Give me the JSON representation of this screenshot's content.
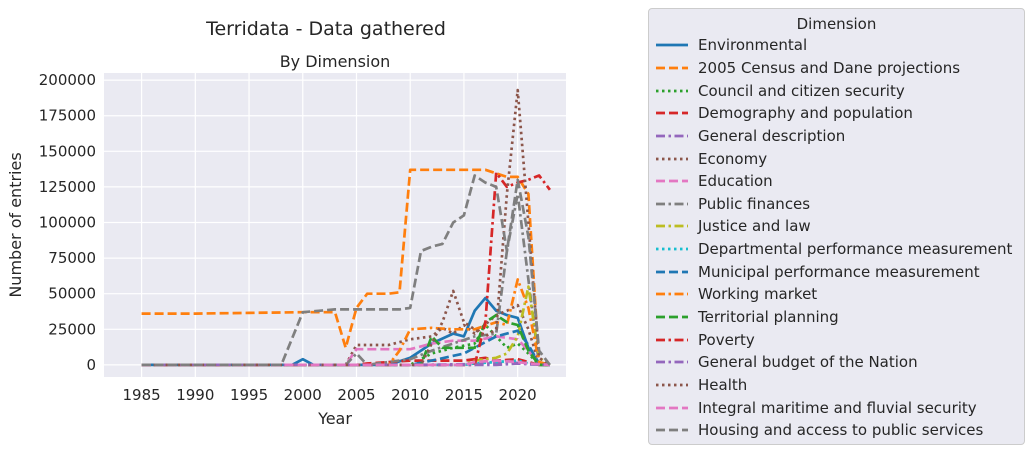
{
  "figure": {
    "suptitle": "Terridata - Data gathered"
  },
  "chart_data": {
    "type": "line",
    "title": "By Dimension",
    "xlabel": "Year",
    "ylabel": "Number of entries",
    "xlim": [
      1981.5,
      2024.5
    ],
    "ylim": [
      -8500,
      205000
    ],
    "xticks": [
      1985,
      1990,
      1995,
      2000,
      2005,
      2010,
      2015,
      2020
    ],
    "yticks": [
      0,
      25000,
      50000,
      75000,
      100000,
      125000,
      150000,
      175000,
      200000
    ],
    "grid": true,
    "legend": {
      "title": "Dimension",
      "placement": "outside-right"
    },
    "series": [
      {
        "name": "Environmental",
        "color": "#1f77b4",
        "dash": "solid",
        "points": [
          [
            1985,
            0
          ],
          [
            1999,
            0
          ],
          [
            2000,
            4000
          ],
          [
            2001,
            0
          ],
          [
            2008,
            0
          ],
          [
            2010,
            5000
          ],
          [
            2012,
            15000
          ],
          [
            2014,
            22000
          ],
          [
            2015,
            20000
          ],
          [
            2016,
            38000
          ],
          [
            2017,
            47000
          ],
          [
            2018,
            38000
          ],
          [
            2019,
            35000
          ],
          [
            2020,
            33000
          ],
          [
            2021,
            12000
          ],
          [
            2022,
            500
          ],
          [
            2023,
            0
          ]
        ]
      },
      {
        "name": "2005 Census and Dane projections",
        "color": "#ff7f0e",
        "dash": "dash",
        "points": [
          [
            1985,
            36000
          ],
          [
            1990,
            36000
          ],
          [
            1995,
            36500
          ],
          [
            2000,
            37000
          ],
          [
            2003,
            37000
          ],
          [
            2004,
            12000
          ],
          [
            2005,
            40000
          ],
          [
            2006,
            50000
          ],
          [
            2008,
            50000
          ],
          [
            2009,
            51000
          ],
          [
            2010,
            137000
          ],
          [
            2015,
            137000
          ],
          [
            2017,
            137000
          ],
          [
            2019,
            132000
          ],
          [
            2020,
            132000
          ],
          [
            2021,
            120000
          ],
          [
            2022,
            0
          ],
          [
            2023,
            0
          ]
        ]
      },
      {
        "name": "Council and citizen security",
        "color": "#2ca02c",
        "dash": "dot",
        "points": [
          [
            1985,
            0
          ],
          [
            2010,
            0
          ],
          [
            2012,
            8000
          ],
          [
            2014,
            12000
          ],
          [
            2016,
            15000
          ],
          [
            2017,
            28000
          ],
          [
            2018,
            20000
          ],
          [
            2019,
            12000
          ],
          [
            2020,
            15000
          ],
          [
            2021,
            8000
          ],
          [
            2022,
            0
          ],
          [
            2023,
            0
          ]
        ]
      },
      {
        "name": "Demography and population",
        "color": "#d62728",
        "dash": "dash",
        "points": [
          [
            1985,
            0
          ],
          [
            2005,
            0
          ],
          [
            2006,
            1000
          ],
          [
            2010,
            3000
          ],
          [
            2015,
            3000
          ],
          [
            2017,
            5000
          ],
          [
            2018,
            3000
          ],
          [
            2020,
            4000
          ],
          [
            2021,
            2000
          ],
          [
            2022,
            0
          ],
          [
            2023,
            0
          ]
        ]
      },
      {
        "name": "General description",
        "color": "#9467bd",
        "dash": "dashdot",
        "points": [
          [
            1985,
            0
          ],
          [
            2010,
            0
          ],
          [
            2015,
            500
          ],
          [
            2020,
            1500
          ],
          [
            2021,
            500
          ],
          [
            2023,
            0
          ]
        ]
      },
      {
        "name": "Economy",
        "color": "#8c564b",
        "dash": "dot",
        "points": [
          [
            1985,
            0
          ],
          [
            2004,
            0
          ],
          [
            2005,
            14000
          ],
          [
            2008,
            14000
          ],
          [
            2010,
            18000
          ],
          [
            2012,
            20000
          ],
          [
            2013,
            26000
          ],
          [
            2014,
            22000
          ],
          [
            2015,
            28000
          ],
          [
            2016,
            22000
          ],
          [
            2018,
            35000
          ],
          [
            2019,
            38000
          ],
          [
            2020,
            42000
          ],
          [
            2021,
            25000
          ],
          [
            2022,
            1000
          ],
          [
            2023,
            0
          ]
        ]
      },
      {
        "name": "Education",
        "color": "#e377c2",
        "dash": "dash",
        "points": [
          [
            1985,
            0
          ],
          [
            2004,
            0
          ],
          [
            2005,
            11000
          ],
          [
            2010,
            11000
          ],
          [
            2011,
            13000
          ],
          [
            2012,
            15000
          ],
          [
            2014,
            17000
          ],
          [
            2016,
            17000
          ],
          [
            2018,
            20000
          ],
          [
            2019,
            19000
          ],
          [
            2020,
            18000
          ],
          [
            2021,
            10000
          ],
          [
            2022,
            0
          ],
          [
            2023,
            0
          ]
        ]
      },
      {
        "name": "Public finances",
        "color": "#7f7f7f",
        "dash": "dashdot",
        "points": [
          [
            1985,
            0
          ],
          [
            2004,
            0
          ],
          [
            2005,
            8000
          ],
          [
            2006,
            0
          ],
          [
            2008,
            2000
          ],
          [
            2010,
            4000
          ],
          [
            2012,
            10000
          ],
          [
            2014,
            15000
          ],
          [
            2016,
            20000
          ],
          [
            2018,
            22000
          ],
          [
            2019,
            80000
          ],
          [
            2020,
            120000
          ],
          [
            2021,
            60000
          ],
          [
            2022,
            0
          ],
          [
            2023,
            0
          ]
        ]
      },
      {
        "name": "Justice and law",
        "color": "#bcbd22",
        "dash": "dashdot",
        "points": [
          [
            1985,
            0
          ],
          [
            2015,
            0
          ],
          [
            2016,
            3000
          ],
          [
            2018,
            5000
          ],
          [
            2019,
            8000
          ],
          [
            2020,
            20000
          ],
          [
            2021,
            55000
          ],
          [
            2022,
            5000
          ],
          [
            2023,
            0
          ]
        ]
      },
      {
        "name": "Departmental performance measurement",
        "color": "#17becf",
        "dash": "dot",
        "points": [
          [
            1985,
            0
          ],
          [
            2015,
            0
          ],
          [
            2016,
            1000
          ],
          [
            2018,
            2000
          ],
          [
            2020,
            3000
          ],
          [
            2021,
            1000
          ],
          [
            2023,
            0
          ]
        ]
      },
      {
        "name": "Municipal performance measurement",
        "color": "#1f77b4",
        "dash": "dash",
        "points": [
          [
            1985,
            0
          ],
          [
            2010,
            0
          ],
          [
            2012,
            3000
          ],
          [
            2015,
            8000
          ],
          [
            2016,
            12000
          ],
          [
            2017,
            16000
          ],
          [
            2018,
            20000
          ],
          [
            2019,
            22000
          ],
          [
            2020,
            24000
          ],
          [
            2021,
            14000
          ],
          [
            2022,
            1000
          ],
          [
            2023,
            0
          ]
        ]
      },
      {
        "name": "Working market",
        "color": "#ff7f0e",
        "dash": "dashdot",
        "points": [
          [
            1985,
            0
          ],
          [
            2008,
            0
          ],
          [
            2009,
            10000
          ],
          [
            2010,
            25000
          ],
          [
            2012,
            26000
          ],
          [
            2014,
            25000
          ],
          [
            2016,
            25000
          ],
          [
            2018,
            30000
          ],
          [
            2019,
            28000
          ],
          [
            2020,
            60000
          ],
          [
            2021,
            40000
          ],
          [
            2022,
            2000
          ],
          [
            2023,
            0
          ]
        ]
      },
      {
        "name": "Territorial planning",
        "color": "#2ca02c",
        "dash": "dash",
        "points": [
          [
            1985,
            0
          ],
          [
            2011,
            0
          ],
          [
            2012,
            20000
          ],
          [
            2013,
            12000
          ],
          [
            2016,
            12000
          ],
          [
            2017,
            30000
          ],
          [
            2018,
            35000
          ],
          [
            2019,
            30000
          ],
          [
            2020,
            28000
          ],
          [
            2021,
            10000
          ],
          [
            2022,
            0
          ],
          [
            2023,
            0
          ]
        ]
      },
      {
        "name": "Poverty",
        "color": "#d62728",
        "dash": "dashdot",
        "points": [
          [
            1985,
            0
          ],
          [
            2016,
            0
          ],
          [
            2017,
            30000
          ],
          [
            2018,
            135000
          ],
          [
            2019,
            125000
          ],
          [
            2020,
            128000
          ],
          [
            2021,
            130000
          ],
          [
            2022,
            133000
          ],
          [
            2023,
            123000
          ]
        ]
      },
      {
        "name": "General budget of the Nation",
        "color": "#9467bd",
        "dash": "dashdot",
        "points": [
          [
            1985,
            0
          ],
          [
            2018,
            0
          ],
          [
            2020,
            1000
          ],
          [
            2021,
            500
          ],
          [
            2023,
            0
          ]
        ]
      },
      {
        "name": "Health",
        "color": "#8c564b",
        "dash": "dot",
        "points": [
          [
            1985,
            0
          ],
          [
            2011,
            0
          ],
          [
            2012,
            15000
          ],
          [
            2013,
            30000
          ],
          [
            2014,
            52000
          ],
          [
            2015,
            30000
          ],
          [
            2016,
            25000
          ],
          [
            2017,
            20000
          ],
          [
            2018,
            25000
          ],
          [
            2019,
            120000
          ],
          [
            2020,
            193000
          ],
          [
            2021,
            100000
          ],
          [
            2022,
            5000
          ],
          [
            2023,
            0
          ]
        ]
      },
      {
        "name": "Integral maritime and fluvial security",
        "color": "#e377c2",
        "dash": "dash",
        "points": [
          [
            1985,
            0
          ],
          [
            2015,
            0
          ],
          [
            2016,
            2000
          ],
          [
            2018,
            3000
          ],
          [
            2020,
            2000
          ],
          [
            2021,
            1000
          ],
          [
            2023,
            0
          ]
        ]
      },
      {
        "name": "Housing and access to public services",
        "color": "#7f7f7f",
        "dash": "dash",
        "points": [
          [
            1985,
            0
          ],
          [
            1998,
            0
          ],
          [
            2000,
            37000
          ],
          [
            2003,
            39000
          ],
          [
            2005,
            39000
          ],
          [
            2009,
            39000
          ],
          [
            2010,
            40000
          ],
          [
            2011,
            80000
          ],
          [
            2012,
            83000
          ],
          [
            2013,
            85000
          ],
          [
            2014,
            100000
          ],
          [
            2015,
            105000
          ],
          [
            2016,
            133000
          ],
          [
            2017,
            128000
          ],
          [
            2018,
            125000
          ],
          [
            2019,
            80000
          ],
          [
            2020,
            130000
          ],
          [
            2021,
            90000
          ],
          [
            2022,
            10000
          ],
          [
            2023,
            0
          ]
        ]
      }
    ]
  }
}
